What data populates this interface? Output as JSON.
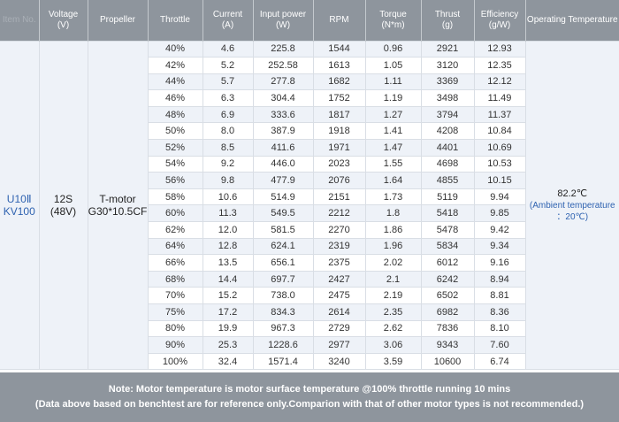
{
  "table": {
    "headers": [
      {
        "line1": "Item No.",
        "line2": ""
      },
      {
        "line1": "Voltage",
        "line2": "(V)"
      },
      {
        "line1": "Propeller",
        "line2": ""
      },
      {
        "line1": "Throttle",
        "line2": ""
      },
      {
        "line1": "Current",
        "line2": "(A)"
      },
      {
        "line1": "Input power",
        "line2": "(W)"
      },
      {
        "line1": "RPM",
        "line2": ""
      },
      {
        "line1": "Torque",
        "line2": "(N*m)"
      },
      {
        "line1": "Thrust",
        "line2": "(g)"
      },
      {
        "line1": "Efficiency",
        "line2": "(g/W)"
      },
      {
        "line1": "Operating Temperature",
        "line2": ""
      }
    ],
    "model_line1": "U10Ⅱ",
    "model_line2": "KV100",
    "voltage_line1": "12S",
    "voltage_line2": "(48V)",
    "propeller_line1": "T-motor",
    "propeller_line2": "G30*10.5CF",
    "temperature_value": "82.2℃",
    "temperature_note_line1": "(Ambient temperature",
    "temperature_note_line2": "：20℃)",
    "rows": [
      [
        "40%",
        "4.6",
        "225.8",
        "1544",
        "0.96",
        "2921",
        "12.93"
      ],
      [
        "42%",
        "5.2",
        "252.58",
        "1613",
        "1.05",
        "3120",
        "12.35"
      ],
      [
        "44%",
        "5.7",
        "277.8",
        "1682",
        "1.11",
        "3369",
        "12.12"
      ],
      [
        "46%",
        "6.3",
        "304.4",
        "1752",
        "1.19",
        "3498",
        "11.49"
      ],
      [
        "48%",
        "6.9",
        "333.6",
        "1817",
        "1.27",
        "3794",
        "11.37"
      ],
      [
        "50%",
        "8.0",
        "387.9",
        "1918",
        "1.41",
        "4208",
        "10.84"
      ],
      [
        "52%",
        "8.5",
        "411.6",
        "1971",
        "1.47",
        "4401",
        "10.69"
      ],
      [
        "54%",
        "9.2",
        "446.0",
        "2023",
        "1.55",
        "4698",
        "10.53"
      ],
      [
        "56%",
        "9.8",
        "477.9",
        "2076",
        "1.64",
        "4855",
        "10.15"
      ],
      [
        "58%",
        "10.6",
        "514.9",
        "2151",
        "1.73",
        "5119",
        "9.94"
      ],
      [
        "60%",
        "11.3",
        "549.5",
        "2212",
        "1.8",
        "5418",
        "9.85"
      ],
      [
        "62%",
        "12.0",
        "581.5",
        "2270",
        "1.86",
        "5478",
        "9.42"
      ],
      [
        "64%",
        "12.8",
        "624.1",
        "2319",
        "1.96",
        "5834",
        "9.34"
      ],
      [
        "66%",
        "13.5",
        "656.1",
        "2375",
        "2.02",
        "6012",
        "9.16"
      ],
      [
        "68%",
        "14.4",
        "697.7",
        "2427",
        "2.1",
        "6242",
        "8.94"
      ],
      [
        "70%",
        "15.2",
        "738.0",
        "2475",
        "2.19",
        "6502",
        "8.81"
      ],
      [
        "75%",
        "17.2",
        "834.3",
        "2614",
        "2.35",
        "6982",
        "8.36"
      ],
      [
        "80%",
        "19.9",
        "967.3",
        "2729",
        "2.62",
        "7836",
        "8.10"
      ],
      [
        "90%",
        "25.3",
        "1228.6",
        "2977",
        "3.06",
        "9343",
        "7.60"
      ],
      [
        "100%",
        "32.4",
        "1571.4",
        "3240",
        "3.59",
        "10600",
        "6.74"
      ]
    ]
  },
  "footer": {
    "line1": "Note: Motor temperature is motor surface temperature @100% throttle running 10 mins",
    "line2": "(Data above based on benchtest are for reference only.Comparion with that of other motor types is not recommended.)"
  },
  "colors": {
    "header_bg": "#8e959d",
    "header_text": "#ffffff",
    "row_alt_bg": "#eef2f8",
    "accent_blue": "#2e62b0",
    "border": "#d9dee5"
  }
}
